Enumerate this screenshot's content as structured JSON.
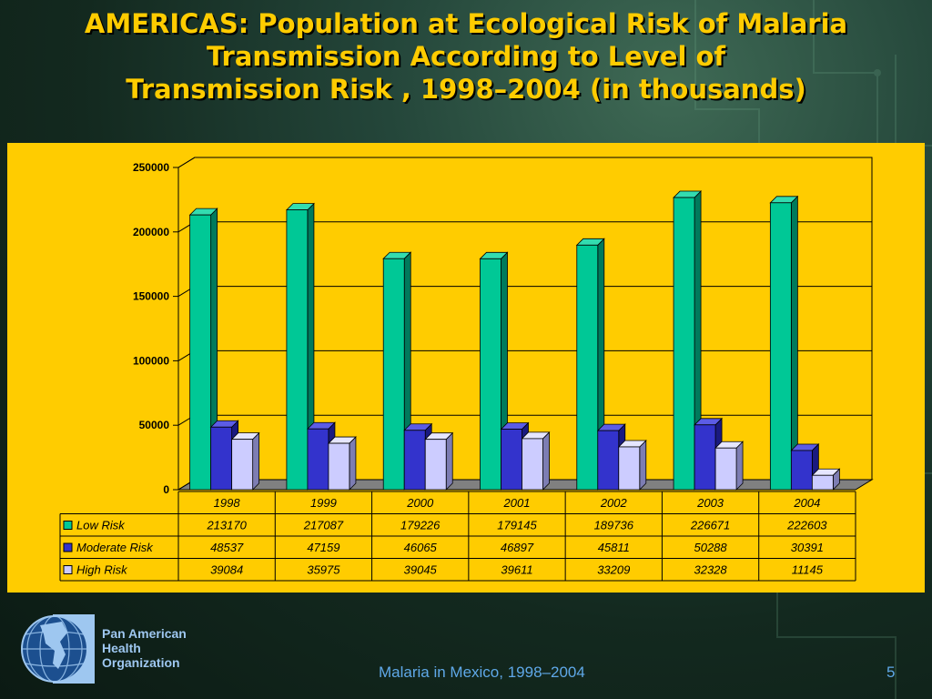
{
  "title_lines": [
    "AMERICAS: Population at Ecological Risk of Malaria",
    "Transmission  According to Level of",
    "Transmission Risk , 1998–2004 (in thousands)"
  ],
  "footer": {
    "text": "Malaria in Mexico, 1998–2004",
    "page_number": "5"
  },
  "organization": {
    "name_lines": [
      "Pan American",
      "Health",
      "Organization"
    ]
  },
  "colors": {
    "panel_background": "#ffcc00",
    "title": "#ffcc00",
    "footer_text": "#5fa8e8",
    "org_text": "#9ec7f0"
  },
  "chart_data": {
    "type": "bar",
    "style": "3d-column with data table",
    "categories": [
      "1998",
      "1999",
      "2000",
      "2001",
      "2002",
      "2003",
      "2004"
    ],
    "series": [
      {
        "name": "Low Risk",
        "values": [
          213170,
          217087,
          179226,
          179145,
          189736,
          226671,
          222603
        ],
        "color": "#00c896",
        "side_color": "#007a5c",
        "top_color": "#33dcb0"
      },
      {
        "name": "Moderate Risk",
        "values": [
          48537,
          47159,
          46065,
          46897,
          45811,
          50288,
          30391
        ],
        "color": "#3333cc",
        "side_color": "#1a1a80",
        "top_color": "#5c5ce6"
      },
      {
        "name": "High Risk",
        "values": [
          39084,
          35975,
          39045,
          39611,
          33209,
          32328,
          11145
        ],
        "color": "#ccccff",
        "side_color": "#7d7db3",
        "top_color": "#e6e6ff"
      }
    ],
    "yticks": [
      "0",
      "50000",
      "100000",
      "150000",
      "200000",
      "250000"
    ],
    "ylim": [
      0,
      250000
    ],
    "grid": true,
    "legend": "data table below chart"
  }
}
